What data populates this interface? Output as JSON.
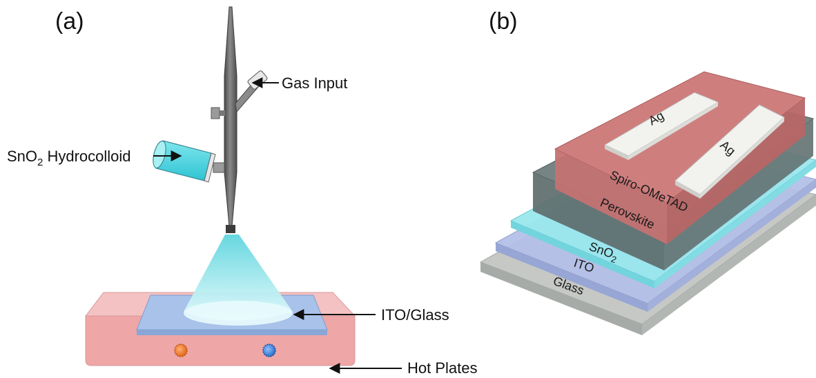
{
  "panels": {
    "a": {
      "label": "(a)"
    },
    "b": {
      "label": "(b)"
    }
  },
  "spray_setup": {
    "gas_input": "Gas Input",
    "hydrocolloid_prefix": "SnO",
    "hydrocolloid_sub": "2",
    "hydrocolloid_suffix": " Hydrocolloid",
    "substrate": "ITO/Glass",
    "hot_plates": "Hot Plates"
  },
  "device_stack": {
    "electrode_1": "Ag",
    "electrode_2": "Ag",
    "htl": "Spiro-OMeTAD",
    "absorber": "Perovskite",
    "etl_prefix": "SnO",
    "etl_sub": "2",
    "tco": "ITO",
    "substrate": "Glass"
  },
  "colors": {
    "hot_plate": "#eea6a6",
    "ito_glass": "#9db8e4",
    "spray": "#8ee6ea",
    "spiro": "#c87474",
    "perovskite": "#5a6868",
    "sno2": "#8de2ea",
    "ito": "#aab8e2",
    "glass": "#bcc0bc",
    "silver": "#ececea",
    "nozzle": "#6e6e6e"
  }
}
